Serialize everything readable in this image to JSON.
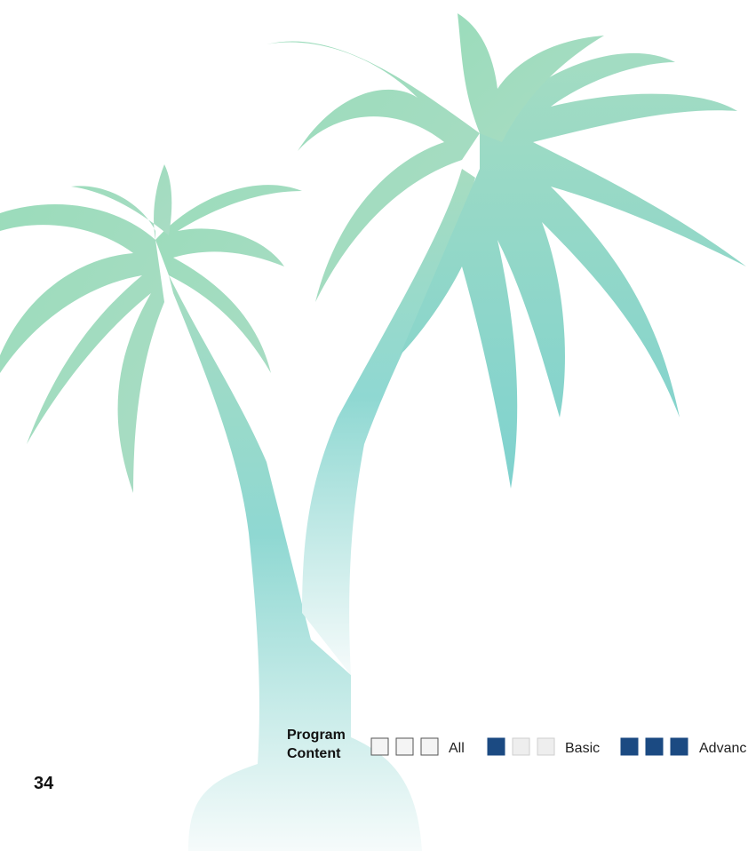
{
  "legend": {
    "title_lines": [
      "Program",
      "Content"
    ],
    "items": [
      {
        "label": "All"
      },
      {
        "label": "Basic"
      },
      {
        "label": "Advanc"
      }
    ]
  },
  "page_number": "34"
}
